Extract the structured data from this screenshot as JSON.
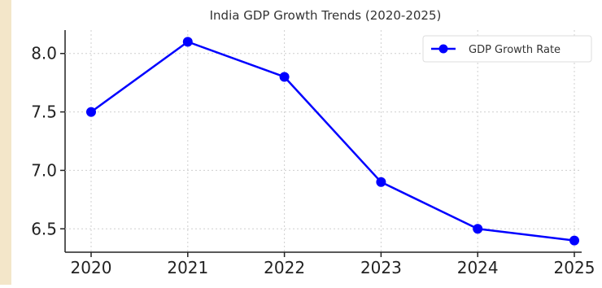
{
  "chart_data": {
    "type": "line",
    "title": "India GDP Growth Trends (2020-2025)",
    "xlabel": "",
    "ylabel": "",
    "x": [
      2020,
      2021,
      2022,
      2023,
      2024,
      2025
    ],
    "series": [
      {
        "name": "GDP Growth Rate",
        "values": [
          7.5,
          8.1,
          7.8,
          6.9,
          6.5,
          6.4
        ],
        "color": "#0000ff"
      }
    ],
    "yticks": [
      "6.5",
      "7.0",
      "7.5",
      "8.0"
    ],
    "xticks": [
      "2020",
      "2021",
      "2022",
      "2023",
      "2024",
      "2025"
    ],
    "ylim": [
      6.3,
      8.2
    ],
    "grid": true,
    "legend_position": "top-right"
  }
}
